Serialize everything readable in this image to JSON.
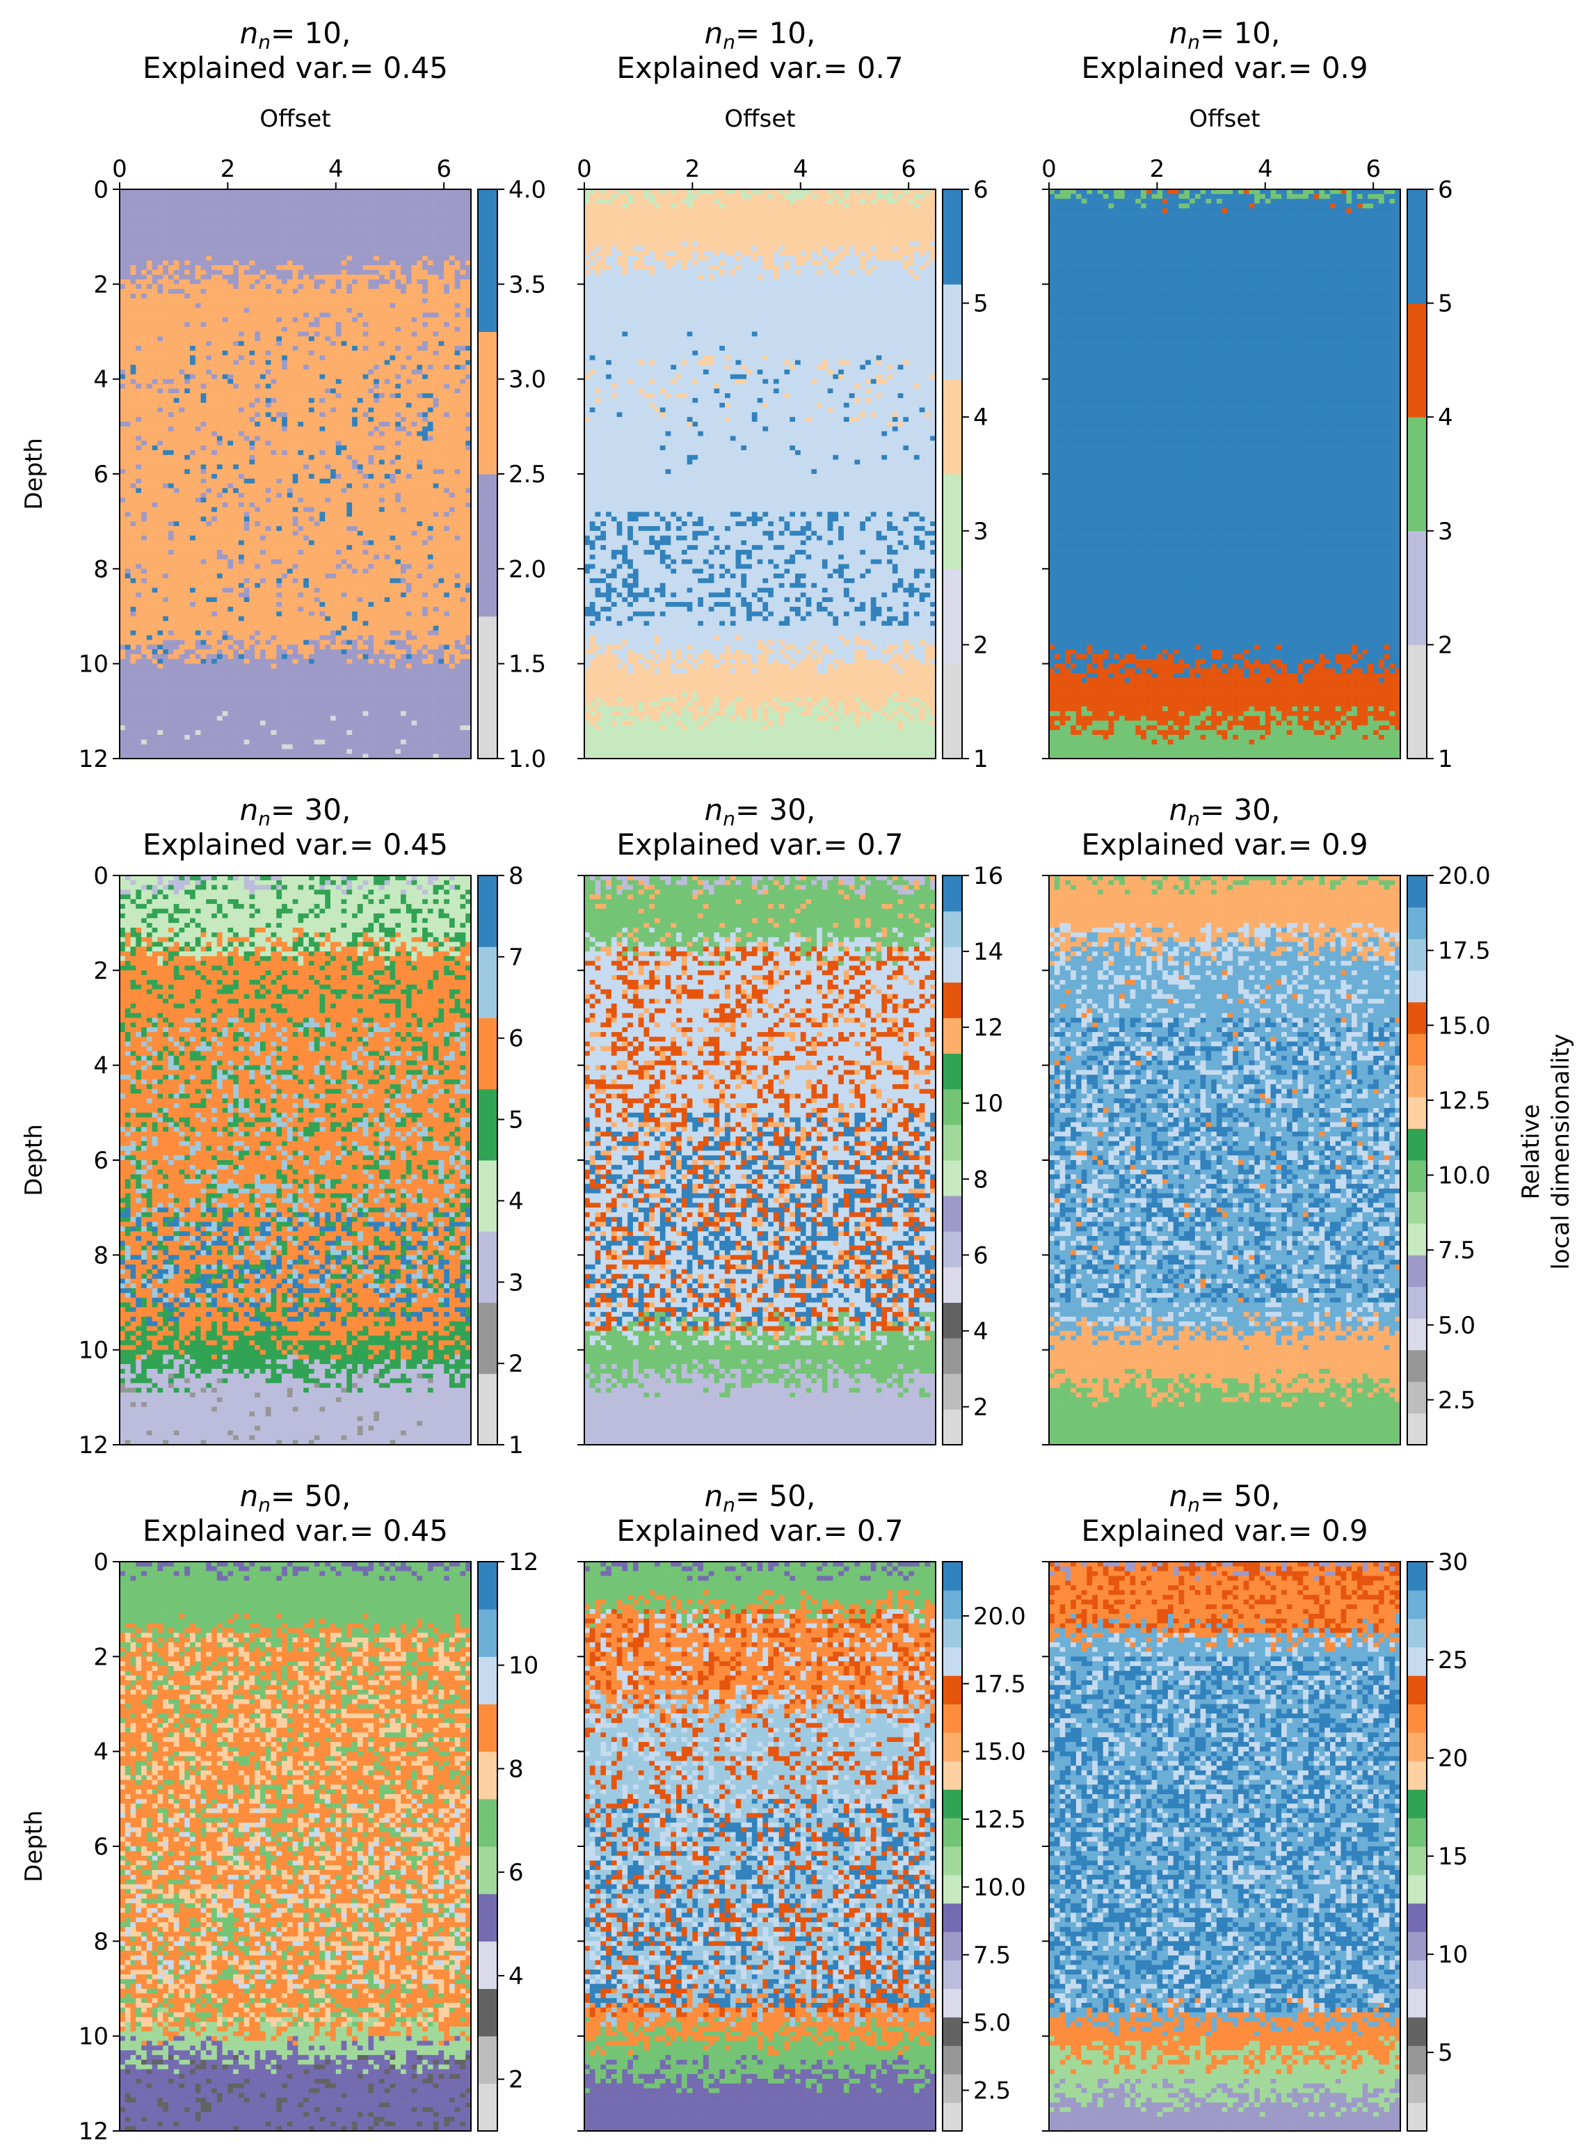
{
  "figure": {
    "x_axis_label": "Offset",
    "y_axis_label": "Depth",
    "colorbar_label_line1": "Relative",
    "colorbar_label_line2": "local dimensionality"
  },
  "chart_data": [
    {
      "type": "heatmap",
      "row": 0,
      "col": 0,
      "n": "10",
      "var": "0.45",
      "title_line2": "Explained var.= 0.45",
      "xlim": [
        0,
        6.5
      ],
      "ylim": [
        12,
        0
      ],
      "xticks": [
        "0",
        "2",
        "4",
        "6"
      ],
      "yticks": [
        "0",
        "2",
        "4",
        "6",
        "8",
        "10",
        "12"
      ],
      "colorbar": {
        "min": 1,
        "max": 4,
        "levels": 3,
        "ticks": [
          "1.0",
          "1.5",
          "2.0",
          "2.5",
          "3.0",
          "3.5",
          "4.0"
        ],
        "colors": [
          "#d9d9d9",
          "#9e9ac8",
          "#fdae6b",
          "#3182bd"
        ]
      },
      "regions": [
        {
          "from": 0,
          "to": 1.8,
          "level": 1
        },
        {
          "from": 1.8,
          "to": 9.7,
          "level": 2
        },
        {
          "from": 9.7,
          "to": 12,
          "level": 1
        }
      ],
      "speckle": [
        {
          "level": 3,
          "depth": [
            3,
            10
          ],
          "p": 0.05
        },
        {
          "level": 1,
          "depth": [
            2,
            9
          ],
          "p": 0.08
        },
        {
          "level": 0,
          "depth": [
            11,
            12
          ],
          "p": 0.05
        }
      ]
    },
    {
      "type": "heatmap",
      "row": 0,
      "col": 1,
      "n": "10",
      "var": "0.7",
      "title_line2": "Explained var.= 0.7",
      "xlim": [
        0,
        6.5
      ],
      "ylim": [
        12,
        0
      ],
      "xticks": [
        "0",
        "2",
        "4",
        "6"
      ],
      "yticks": [],
      "colorbar": {
        "min": 1,
        "max": 6,
        "levels": 5,
        "ticks": [
          "1",
          "2",
          "3",
          "4",
          "5",
          "6"
        ],
        "colors": [
          "#d9d9d9",
          "#dadaeb",
          "#c7e9c0",
          "#fdd0a2",
          "#c6dbef",
          "#3182bd"
        ]
      },
      "regions": [
        {
          "from": 0,
          "to": 1.5,
          "level": 3
        },
        {
          "from": 1.5,
          "to": 9.8,
          "level": 4
        },
        {
          "from": 9.8,
          "to": 11,
          "level": 3
        },
        {
          "from": 11,
          "to": 12,
          "level": 2
        }
      ],
      "speckle": [
        {
          "level": 5,
          "depth": [
            6.8,
            9.2
          ],
          "p": 0.25
        },
        {
          "level": 5,
          "depth": [
            3,
            6
          ],
          "p": 0.03
        },
        {
          "level": 3,
          "depth": [
            3.5,
            5
          ],
          "p": 0.08
        }
      ]
    },
    {
      "type": "heatmap",
      "row": 0,
      "col": 2,
      "n": "10",
      "var": "0.9",
      "title_line2": "Explained var.= 0.9",
      "xlim": [
        0,
        6.5
      ],
      "ylim": [
        12,
        0
      ],
      "xticks": [
        "0",
        "2",
        "4",
        "6"
      ],
      "yticks": [],
      "colorbar": {
        "min": 1,
        "max": 6,
        "levels": 5,
        "ticks": [
          "1",
          "2",
          "3",
          "4",
          "5",
          "6"
        ],
        "colors": [
          "#d9d9d9",
          "#bcbddc",
          "#74c476",
          "#e6550d",
          "#3182bd"
        ]
      },
      "regions": [
        {
          "from": 0,
          "to": 10,
          "level": 4
        },
        {
          "from": 10,
          "to": 11.3,
          "level": 3
        },
        {
          "from": 11.3,
          "to": 12,
          "level": 2
        }
      ],
      "speckle": [
        {
          "level": 3,
          "depth": [
            0,
            0.5
          ],
          "p": 0.04
        }
      ]
    },
    {
      "type": "heatmap",
      "row": 1,
      "col": 0,
      "n": "30",
      "var": "0.45",
      "title_line2": "Explained var.= 0.45",
      "xlim": [
        0,
        6.5
      ],
      "ylim": [
        12,
        0
      ],
      "xticks": [],
      "yticks": [
        "0",
        "2",
        "4",
        "6",
        "8",
        "10",
        "12"
      ],
      "colorbar": {
        "min": 1,
        "max": 8,
        "levels": 7,
        "ticks": [
          "1",
          "2",
          "3",
          "4",
          "5",
          "6",
          "7",
          "8"
        ],
        "colors": [
          "#d9d9d9",
          "#969696",
          "#bcbddc",
          "#c7e9c0",
          "#31a354",
          "#fd8d3c",
          "#9ecae1",
          "#3182bd"
        ]
      },
      "regions": [
        {
          "from": 0,
          "to": 1.5,
          "level": 3
        },
        {
          "from": 1.5,
          "to": 9.8,
          "level": 5
        },
        {
          "from": 9.8,
          "to": 10.5,
          "level": 4
        },
        {
          "from": 10.5,
          "to": 12,
          "level": 2
        }
      ],
      "speckle": [
        {
          "level": 4,
          "depth": [
            0,
            10
          ],
          "p": 0.22
        },
        {
          "level": 6,
          "depth": [
            3,
            9
          ],
          "p": 0.18
        },
        {
          "level": 7,
          "depth": [
            7,
            9.5
          ],
          "p": 0.2
        },
        {
          "level": 1,
          "depth": [
            10.5,
            12
          ],
          "p": 0.06
        }
      ]
    },
    {
      "type": "heatmap",
      "row": 1,
      "col": 1,
      "n": "30",
      "var": "0.7",
      "title_line2": "Explained var.= 0.7",
      "xlim": [
        0,
        6.5
      ],
      "ylim": [
        12,
        0
      ],
      "xticks": [],
      "yticks": [],
      "colorbar": {
        "min": 1,
        "max": 16,
        "levels": 15,
        "ticks": [
          "2",
          "4",
          "6",
          "8",
          "10",
          "12",
          "14",
          "16"
        ],
        "colors": [
          "#d9d9d9",
          "#bdbdbd",
          "#969696",
          "#636363",
          "#dadaeb",
          "#bcbddc",
          "#9e9ac8",
          "#c7e9c0",
          "#a1d99b",
          "#74c476",
          "#31a354",
          "#fdae6b",
          "#e6550d",
          "#c6dbef",
          "#9ecae1",
          "#3182bd"
        ]
      },
      "regions": [
        {
          "from": 0,
          "to": 1.5,
          "level": 9
        },
        {
          "from": 1.5,
          "to": 9.6,
          "level": 13
        },
        {
          "from": 9.6,
          "to": 10.6,
          "level": 9
        },
        {
          "from": 10.6,
          "to": 12,
          "level": 5
        }
      ],
      "speckle": [
        {
          "level": 12,
          "depth": [
            1.5,
            9.6
          ],
          "p": 0.3
        },
        {
          "level": 15,
          "depth": [
            5,
            9.5
          ],
          "p": 0.3
        },
        {
          "level": 11,
          "depth": [
            0,
            10
          ],
          "p": 0.1
        }
      ]
    },
    {
      "type": "heatmap",
      "row": 1,
      "col": 2,
      "n": "30",
      "var": "0.9",
      "title_line2": "Explained var.= 0.9",
      "xlim": [
        0,
        6.5
      ],
      "ylim": [
        12,
        0
      ],
      "xticks": [],
      "yticks": [],
      "colorbar": {
        "min": 1,
        "max": 20,
        "levels": 19,
        "ticks": [
          "2.5",
          "5.0",
          "7.5",
          "10.0",
          "12.5",
          "15.0",
          "17.5",
          "20.0"
        ],
        "colors": [
          "#d9d9d9",
          "#bdbdbd",
          "#969696",
          "#dadaeb",
          "#bcbddc",
          "#9e9ac8",
          "#c7e9c0",
          "#a1d99b",
          "#74c476",
          "#31a354",
          "#fdd0a2",
          "#fdae6b",
          "#fd8d3c",
          "#e6550d",
          "#c6dbef",
          "#9ecae1",
          "#6baed6",
          "#3182bd"
        ]
      },
      "regions": [
        {
          "from": 0,
          "to": 1.5,
          "level": 11
        },
        {
          "from": 1.5,
          "to": 9.6,
          "level": 16
        },
        {
          "from": 9.6,
          "to": 10.8,
          "level": 11
        },
        {
          "from": 10.8,
          "to": 12,
          "level": 8
        }
      ],
      "speckle": [
        {
          "level": 17,
          "depth": [
            3,
            9
          ],
          "p": 0.35
        },
        {
          "level": 14,
          "depth": [
            1,
            9.5
          ],
          "p": 0.25
        },
        {
          "level": 12,
          "depth": [
            2,
            9
          ],
          "p": 0.02
        }
      ]
    },
    {
      "type": "heatmap",
      "row": 2,
      "col": 0,
      "n": "50",
      "var": "0.45",
      "title_line2": "Explained var.= 0.45",
      "xlim": [
        0,
        6.5
      ],
      "ylim": [
        12,
        0
      ],
      "xticks": [],
      "yticks": [
        "0",
        "2",
        "4",
        "6",
        "8",
        "10",
        "12"
      ],
      "colorbar": {
        "min": 1,
        "max": 12,
        "levels": 11,
        "ticks": [
          "2",
          "4",
          "6",
          "8",
          "10",
          "12"
        ],
        "colors": [
          "#d9d9d9",
          "#bdbdbd",
          "#636363",
          "#dadaeb",
          "#756bb1",
          "#a1d99b",
          "#74c476",
          "#fdd0a2",
          "#fd8d3c",
          "#c6dbef",
          "#6baed6",
          "#3182bd"
        ]
      },
      "regions": [
        {
          "from": 0,
          "to": 1.5,
          "level": 6
        },
        {
          "from": 1.5,
          "to": 9.8,
          "level": 8
        },
        {
          "from": 9.8,
          "to": 10.4,
          "level": 5
        },
        {
          "from": 10.4,
          "to": 12,
          "level": 4
        }
      ],
      "speckle": [
        {
          "level": 7,
          "depth": [
            1.5,
            9.8
          ],
          "p": 0.3
        },
        {
          "level": 6,
          "depth": [
            1,
            9.8
          ],
          "p": 0.2
        },
        {
          "level": 9,
          "depth": [
            5,
            9
          ],
          "p": 0.1
        },
        {
          "level": 2,
          "depth": [
            10.4,
            12
          ],
          "p": 0.15
        }
      ]
    },
    {
      "type": "heatmap",
      "row": 2,
      "col": 1,
      "n": "50",
      "var": "0.7",
      "title_line2": "Explained var.= 0.7",
      "xlim": [
        0,
        6.5
      ],
      "ylim": [
        12,
        0
      ],
      "xticks": [],
      "yticks": [],
      "colorbar": {
        "min": 1,
        "max": 22,
        "levels": 21,
        "ticks": [
          "2.5",
          "5.0",
          "7.5",
          "10.0",
          "12.5",
          "15.0",
          "17.5",
          "20.0"
        ],
        "colors": [
          "#d9d9d9",
          "#bdbdbd",
          "#969696",
          "#636363",
          "#dadaeb",
          "#bcbddc",
          "#9e9ac8",
          "#756bb1",
          "#c7e9c0",
          "#a1d99b",
          "#74c476",
          "#31a354",
          "#fdd0a2",
          "#fdae6b",
          "#fd8d3c",
          "#e6550d",
          "#c6dbef",
          "#9ecae1",
          "#6baed6",
          "#3182bd"
        ]
      },
      "regions": [
        {
          "from": 0,
          "to": 1,
          "level": 10
        },
        {
          "from": 1,
          "to": 3,
          "level": 14
        },
        {
          "from": 3,
          "to": 9.4,
          "level": 17
        },
        {
          "from": 9.4,
          "to": 10,
          "level": 14
        },
        {
          "from": 10,
          "to": 10.8,
          "level": 10
        },
        {
          "from": 10.8,
          "to": 12,
          "level": 7
        }
      ],
      "speckle": [
        {
          "level": 19,
          "depth": [
            5,
            9.4
          ],
          "p": 0.35
        },
        {
          "level": 15,
          "depth": [
            1,
            9.6
          ],
          "p": 0.25
        },
        {
          "level": 16,
          "depth": [
            1,
            9
          ],
          "p": 0.2
        }
      ]
    },
    {
      "type": "heatmap",
      "row": 2,
      "col": 2,
      "n": "50",
      "var": "0.9",
      "title_line2": "Explained var.= 0.9",
      "xlim": [
        0,
        6.5
      ],
      "ylim": [
        12,
        0
      ],
      "xticks": [],
      "yticks": [],
      "colorbar": {
        "min": 1,
        "max": 30,
        "levels": 29,
        "ticks": [
          "5",
          "10",
          "15",
          "20",
          "25",
          "30"
        ],
        "colors": [
          "#d9d9d9",
          "#bdbdbd",
          "#969696",
          "#636363",
          "#dadaeb",
          "#bcbddc",
          "#9e9ac8",
          "#756bb1",
          "#c7e9c0",
          "#a1d99b",
          "#74c476",
          "#31a354",
          "#fdd0a2",
          "#fdae6b",
          "#fd8d3c",
          "#e6550d",
          "#c6dbef",
          "#9ecae1",
          "#6baed6",
          "#3182bd"
        ]
      },
      "regions": [
        {
          "from": 0,
          "to": 1.5,
          "level": 14
        },
        {
          "from": 1.5,
          "to": 9.6,
          "level": 18
        },
        {
          "from": 9.6,
          "to": 10.4,
          "level": 14
        },
        {
          "from": 10.4,
          "to": 11.3,
          "level": 9
        },
        {
          "from": 11.3,
          "to": 12,
          "level": 6
        }
      ],
      "speckle": [
        {
          "level": 19,
          "depth": [
            2,
            9.5
          ],
          "p": 0.45
        },
        {
          "level": 16,
          "depth": [
            1.5,
            9.5
          ],
          "p": 0.2
        },
        {
          "level": 15,
          "depth": [
            0,
            1.5
          ],
          "p": 0.3
        }
      ]
    }
  ]
}
